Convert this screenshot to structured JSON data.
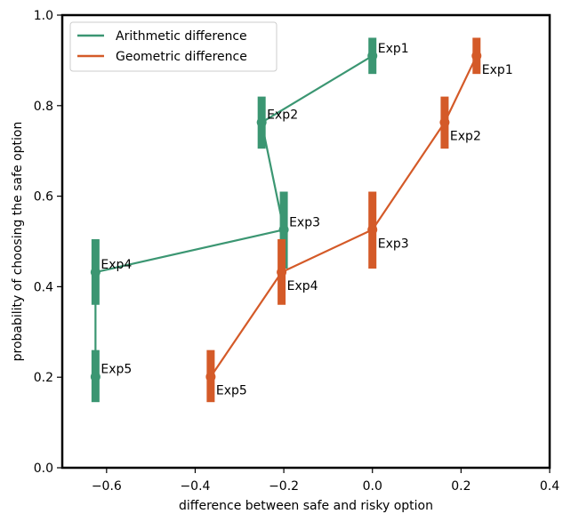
{
  "chart_data": {
    "type": "line",
    "xlabel": "difference between safe and risky option",
    "ylabel": "probability of choosing the safe option",
    "xlim": [
      -0.7,
      0.4
    ],
    "ylim": [
      0.0,
      1.0
    ],
    "xticks": [
      -0.6,
      -0.4,
      -0.2,
      0.0,
      0.2,
      0.4
    ],
    "xtick_labels": [
      "−0.6",
      "−0.4",
      "−0.2",
      "0.0",
      "0.2",
      "0.4"
    ],
    "yticks": [
      0.0,
      0.2,
      0.4,
      0.6,
      0.8,
      1.0
    ],
    "ytick_labels": [
      "0.0",
      "0.2",
      "0.4",
      "0.6",
      "0.8",
      "1.0"
    ],
    "grid": false,
    "legend_position": "top-left",
    "series": [
      {
        "name": "Arithmetic difference",
        "color": "#3b9672",
        "label_placement": "above-right",
        "points": [
          {
            "label": "Exp1",
            "x": 0.0,
            "y": 0.91,
            "err_low": 0.87,
            "err_high": 0.95
          },
          {
            "label": "Exp2",
            "x": -0.25,
            "y": 0.763,
            "err_low": 0.705,
            "err_high": 0.82
          },
          {
            "label": "Exp3",
            "x": -0.2,
            "y": 0.526,
            "err_low": 0.44,
            "err_high": 0.61
          },
          {
            "label": "Exp4",
            "x": -0.625,
            "y": 0.432,
            "err_low": 0.36,
            "err_high": 0.505
          },
          {
            "label": "Exp5",
            "x": -0.625,
            "y": 0.201,
            "err_low": 0.145,
            "err_high": 0.26
          }
        ]
      },
      {
        "name": "Geometric difference",
        "color": "#d45a28",
        "label_placement": "below-right",
        "points": [
          {
            "label": "Exp1",
            "x": 0.235,
            "y": 0.91,
            "err_low": 0.87,
            "err_high": 0.95
          },
          {
            "label": "Exp2",
            "x": 0.163,
            "y": 0.763,
            "err_low": 0.705,
            "err_high": 0.82
          },
          {
            "label": "Exp3",
            "x": 0.0,
            "y": 0.526,
            "err_low": 0.44,
            "err_high": 0.61
          },
          {
            "label": "Exp4",
            "x": -0.205,
            "y": 0.432,
            "err_low": 0.36,
            "err_high": 0.505
          },
          {
            "label": "Exp5",
            "x": -0.365,
            "y": 0.201,
            "err_low": 0.145,
            "err_high": 0.26
          }
        ]
      }
    ]
  }
}
